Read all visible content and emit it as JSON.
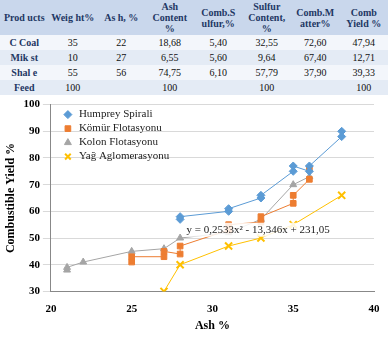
{
  "table": {
    "header": [
      "Prod ucts",
      "Weig ht%",
      "As h, %",
      "Ash Content %",
      "Comb.S ulfur,%",
      "Sulfur Content, %",
      "Comb.M atter%",
      "Comb Yield %"
    ],
    "rows": [
      [
        "C Coal",
        "35",
        "22",
        "18,68",
        "5,40",
        "32,55",
        "72,60",
        "47,94"
      ],
      [
        "Mik st",
        "10",
        "27",
        "6,55",
        "5,60",
        "9,64",
        "67,40",
        "12,71"
      ],
      [
        "Shal e",
        "55",
        "56",
        "74,75",
        "6,10",
        "57,79",
        "37,90",
        "39,33"
      ],
      [
        "Feed",
        "100",
        null,
        "100",
        null,
        "100",
        null,
        "100"
      ]
    ]
  },
  "chart_data": {
    "type": "scatter",
    "x_label": "Ash %",
    "y_label": "Combustible Yield %",
    "xlim": [
      20,
      40
    ],
    "xticks": [
      20,
      25,
      30,
      35,
      40
    ],
    "ylim": [
      30,
      100
    ],
    "yticks": [
      30,
      40,
      50,
      60,
      70,
      80,
      90,
      100
    ],
    "grid": "y",
    "legend": "upper left",
    "annotations": [
      "y = 0,2533x² - 13,346x + 231,05"
    ],
    "series": [
      {
        "name": "Humprey Spirali",
        "color": "#5b9bd5",
        "marker": "diamond",
        "x": [
          28,
          28,
          31,
          31,
          33,
          33,
          35,
          35,
          36,
          36,
          38,
          38
        ],
        "values": [
          57,
          58,
          60,
          61,
          65,
          66,
          75,
          77,
          75,
          77,
          88,
          90
        ]
      },
      {
        "name": "Kömür Flotasyonu",
        "color": "#ed7d31",
        "marker": "square",
        "x": [
          25,
          25,
          27,
          27,
          28,
          28,
          31,
          31,
          33,
          33,
          35,
          35,
          36,
          36
        ],
        "values": [
          41,
          43,
          43,
          45,
          44,
          47,
          53,
          55,
          56,
          58,
          63,
          66,
          72,
          76
        ]
      },
      {
        "name": "Kolon Flotasyonu",
        "color": "#a5a5a5",
        "marker": "triangle",
        "x": [
          21,
          21,
          22,
          25,
          27,
          28,
          31,
          33,
          35,
          36
        ],
        "values": [
          38,
          39,
          41,
          45,
          46,
          50,
          52,
          57,
          70,
          73
        ]
      },
      {
        "name": "Yağ Aglomerasyonu",
        "color": "#ffc000",
        "marker": "x",
        "x": [
          27,
          28,
          31,
          33,
          35,
          38
        ],
        "values": [
          30,
          40,
          47,
          50,
          55,
          66
        ]
      }
    ]
  }
}
